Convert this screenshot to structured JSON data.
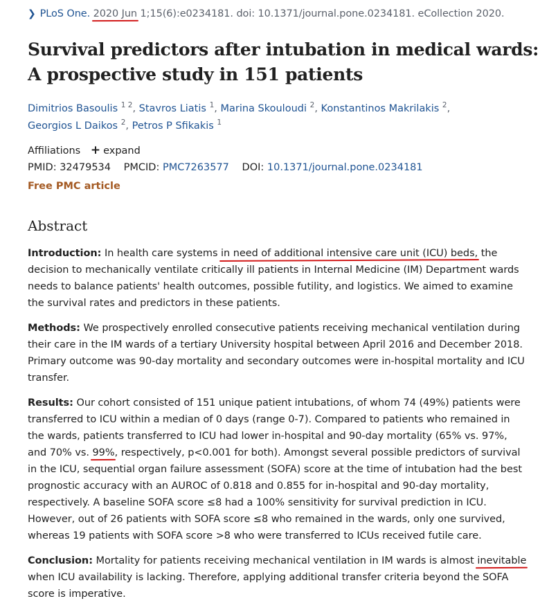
{
  "citation": {
    "journal": "PLoS One.",
    "date": "2020 Jun",
    "details": "1;15(6):e0234181. doi: 10.1371/journal.pone.0234181. eCollection 2020."
  },
  "title": {
    "line1": "Survival predictors after intubation in medical wards:",
    "line2": "A prospective study in 151 patients"
  },
  "authors": [
    {
      "name": "Dimitrios Basoulis",
      "aff": "1 2",
      "sep": ", "
    },
    {
      "name": "Stavros Liatis",
      "aff": "1",
      "sep": ", "
    },
    {
      "name": "Marina Skouloudi",
      "aff": "2",
      "sep": ", "
    },
    {
      "name": "Konstantinos Makrilakis",
      "aff": "2",
      "sep": ","
    },
    {
      "name": "Georgios L Daikos",
      "aff": "2",
      "sep": ", "
    },
    {
      "name": "Petros P Sfikakis",
      "aff": "1",
      "sep": ""
    }
  ],
  "affiliations": {
    "label": "Affiliations",
    "expand_label": "expand"
  },
  "ids": {
    "pmid_label": "PMID:",
    "pmid": "32479534",
    "pmcid_label": "PMCID:",
    "pmcid": "PMC7263577",
    "doi_label": "DOI:",
    "doi": "10.1371/journal.pone.0234181"
  },
  "free_pmc": "Free PMC article",
  "abstract": {
    "heading": "Abstract",
    "introduction": {
      "label": "Introduction:",
      "pre": "In health care systems ",
      "highlight": "in need of additional intensive care unit (ICU) beds,",
      "post": " the decision to mechanically ventilate critically ill patients in Internal Medicine (IM) Department wards needs to balance patients' health outcomes, possible futility, and logistics. We aimed to examine the survival rates and predictors in these patients."
    },
    "methods": {
      "label": "Methods:",
      "text": "We prospectively enrolled consecutive patients receiving mechanical ventilation during their care in the IM wards of a tertiary University hospital between April 2016 and December 2018. Primary outcome was 90-day mortality and secondary outcomes were in-hospital mortality and ICU transfer."
    },
    "results": {
      "label": "Results:",
      "pre": "Our cohort consisted of 151 unique patient intubations, of whom 74 (49%) patients were transferred to ICU within a median of 0 days (range 0-7). Compared to patients who remained in the wards, patients transferred to ICU had lower in-hospital and 90-day mortality (65% vs. 97%, and 70% vs. ",
      "highlight": "99%",
      "post": ", respectively, p<0.001 for both). Amongst several possible predictors of survival in the ICU, sequential organ failure assessment (SOFA) score at the time of intubation had the best prognostic accuracy with an AUROC of 0.818 and 0.855 for in-hospital and 90-day mortality, respectively. A baseline SOFA score ≤8 had a 100% sensitivity for survival prediction in ICU. However, out of 26 patients with SOFA score ≤8 who remained in the wards, only one survived, whereas 19 patients with SOFA score >8 who were transferred to ICUs received futile care."
    },
    "conclusion": {
      "label": "Conclusion:",
      "pre": "Mortality for patients receiving mechanical ventilation in IM wards is almost ",
      "highlight": "inevitable",
      "post": " when ICU availability is lacking. Therefore, applying additional transfer criteria beyond the SOFA score is imperative."
    }
  },
  "colors": {
    "link": "#205493",
    "muted": "#5b616b",
    "free_pmc": "#a45a23",
    "annotation": "#d21a1a"
  }
}
